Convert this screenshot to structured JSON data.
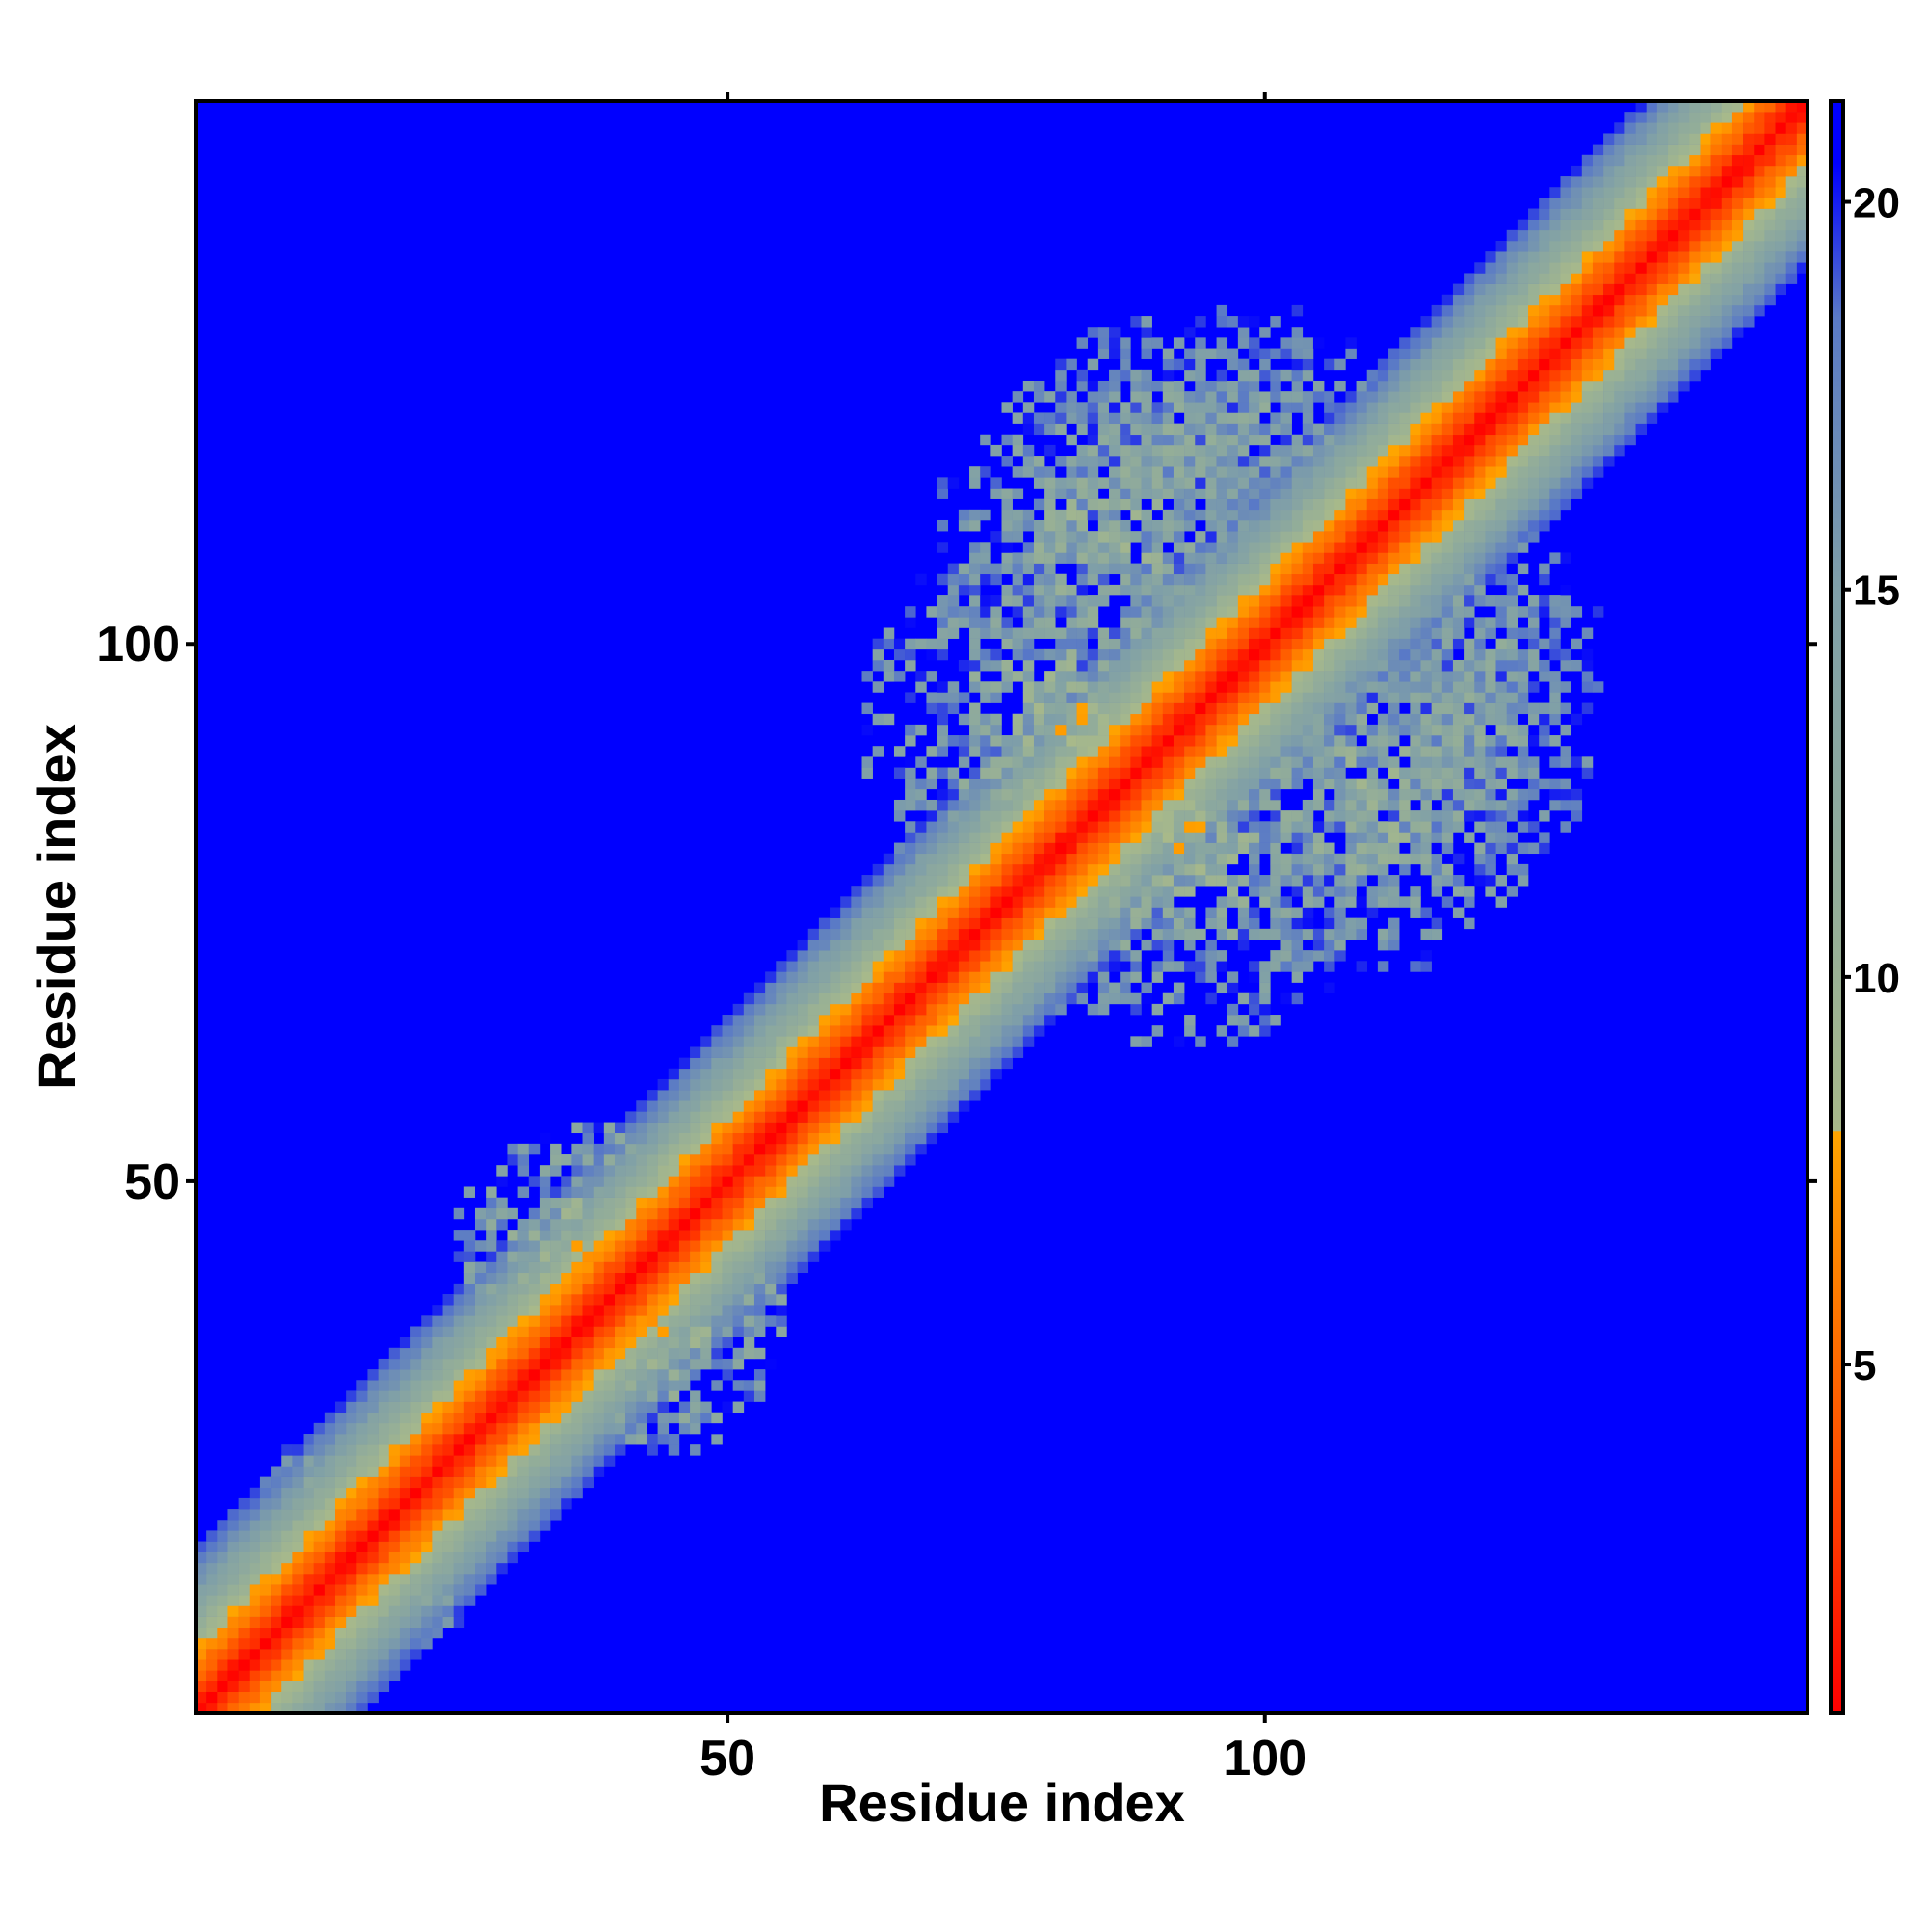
{
  "chart_data": {
    "type": "heatmap",
    "title": "",
    "xlabel": "Residue index",
    "ylabel": "Residue index",
    "xlim": [
      1,
      150
    ],
    "ylim": [
      1,
      150
    ],
    "x_ticks": [
      50,
      100
    ],
    "y_ticks": [
      50,
      100
    ],
    "colorbar": {
      "ticks": [
        5,
        10,
        15,
        20
      ],
      "range": [
        0.5,
        21.3
      ],
      "stops": [
        {
          "value": 0.5,
          "color": "#ff0000"
        },
        {
          "value": 4.0,
          "color": "#ff5500"
        },
        {
          "value": 8.0,
          "color": "#ffa500"
        },
        {
          "value": 8.01,
          "color": "#a8b98a"
        },
        {
          "value": 11.0,
          "color": "#93ad99"
        },
        {
          "value": 15.0,
          "color": "#7f9fa8"
        },
        {
          "value": 18.5,
          "color": "#5a7ac6"
        },
        {
          "value": 20.5,
          "color": "#0000ff"
        }
      ],
      "saturated_color": "#0000ff"
    },
    "description_of_values": "Symmetric residue-residue distance map; diagonal ~0, band grows with |i-j|; cutoff above ~20 shown as saturated blue.",
    "contact_clusters": [
      {
        "center": [
          38,
          42
        ],
        "size": 14,
        "value": 10.5
      },
      {
        "center": [
          82,
          92
        ],
        "size": 20,
        "value": 11.5
      },
      {
        "center": [
          110,
          85
        ],
        "size": 16,
        "value": 12.0
      },
      {
        "center": [
          92,
          118
        ],
        "size": 14,
        "value": 13.5
      },
      {
        "center": [
          120,
          100
        ],
        "size": 12,
        "value": 14.0
      },
      {
        "center": [
          12,
          20
        ],
        "size": 6,
        "value": 13.0
      }
    ],
    "grid": false,
    "legend": "colorbar-right"
  }
}
